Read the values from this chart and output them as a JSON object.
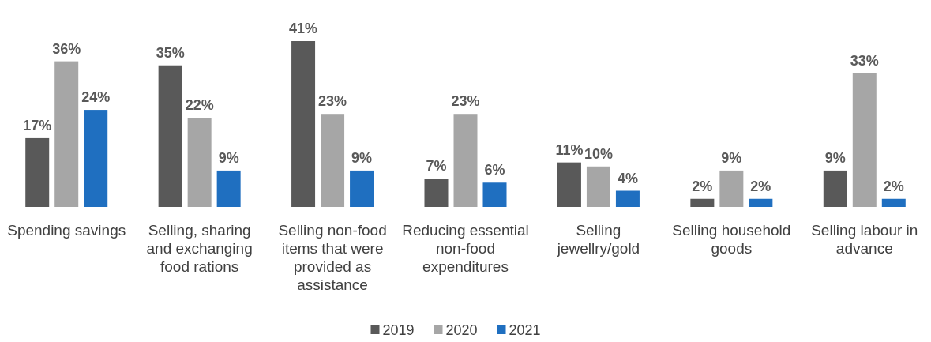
{
  "chart_data": {
    "type": "bar",
    "categories": [
      "Spending savings",
      "Selling, sharing and exchanging food rations",
      "Selling non-food items that were provided as assistance",
      "Reducing essential non-food expenditures",
      "Selling jewellry/gold",
      "Selling household goods",
      "Selling labour in advance"
    ],
    "series": [
      {
        "name": "2019",
        "color": "#595959",
        "values": [
          17,
          35,
          41,
          7,
          11,
          2,
          9
        ],
        "value_labels": [
          "17%",
          "35%",
          "41%",
          "7%",
          "11%",
          "2%",
          "9%"
        ]
      },
      {
        "name": "2020",
        "color": "#a6a6a6",
        "values": [
          36,
          22,
          23,
          23,
          10,
          9,
          33
        ],
        "value_labels": [
          "36%",
          "22%",
          "23%",
          "23%",
          "10%",
          "9%",
          "33%"
        ]
      },
      {
        "name": "2021",
        "color": "#1f6fc0",
        "values": [
          24,
          9,
          9,
          6,
          4,
          2,
          2
        ],
        "value_labels": [
          "24%",
          "9%",
          "9%",
          "6%",
          "4%",
          "2%",
          "2%"
        ]
      }
    ],
    "legend": "bottom"
  }
}
